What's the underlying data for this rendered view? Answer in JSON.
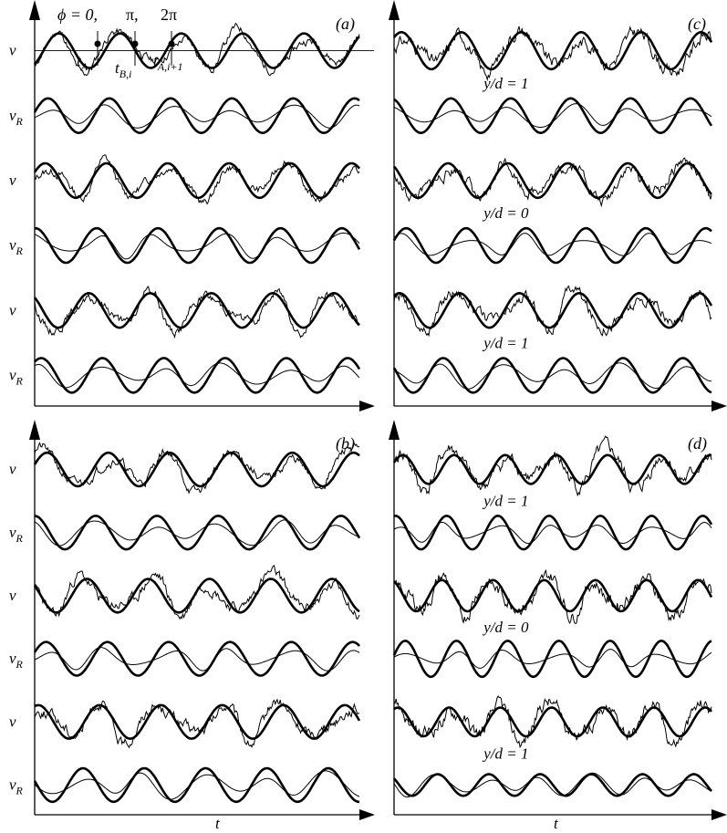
{
  "chart_data": {
    "type": "line",
    "time_axis_label": "t",
    "axis_label_v": "v",
    "axis_label_vR": "v",
    "axis_label_vR_sub": "R",
    "legend": "",
    "grid": false,
    "panels": [
      {
        "id": "a",
        "label": "(a)",
        "rows": [
          {
            "kind": "v",
            "note": "",
            "ref_freq": 5.3,
            "ref_amp": 0.7,
            "ref_phase": -0.9,
            "meas_amp": 0.95,
            "meas_noise": 0.25,
            "seed": 11
          },
          {
            "kind": "vR",
            "note": "",
            "ref_freq": 5.3,
            "ref_amp": 0.7,
            "ref_phase": 0.2,
            "meas_amp": 0.5,
            "meas_noise": 0.0,
            "seed": 12
          },
          {
            "kind": "v",
            "note": "",
            "ref_freq": 5.3,
            "ref_amp": 0.7,
            "ref_phase": 0.5,
            "meas_amp": 0.9,
            "meas_noise": 0.25,
            "seed": 13
          },
          {
            "kind": "vR",
            "note": "",
            "ref_freq": 5.3,
            "ref_amp": 0.7,
            "ref_phase": 1.5,
            "meas_amp": 0.55,
            "meas_noise": 0.0,
            "seed": 14
          },
          {
            "kind": "v",
            "note": "",
            "ref_freq": 5.3,
            "ref_amp": 0.7,
            "ref_phase": 2.3,
            "meas_amp": 0.9,
            "meas_noise": 0.28,
            "seed": 15
          },
          {
            "kind": "vR",
            "note": "",
            "ref_freq": 5.3,
            "ref_amp": 0.7,
            "ref_phase": 0.9,
            "meas_amp": 0.5,
            "meas_noise": 0.0,
            "seed": 16
          }
        ],
        "phase_annotation": {
          "phi0_text": "ϕ = 0,",
          "pi_text": "π,",
          "twopi_text": "2π",
          "tA_i": "t",
          "tA_i_sub": "A,i",
          "tB_i": "t",
          "tB_i_sub": "B,i",
          "tA_i1": "t",
          "tA_i1_sub": "A,i+1"
        }
      },
      {
        "id": "b",
        "label": "(b)",
        "rows": [
          {
            "kind": "v",
            "note": "",
            "ref_freq": 5.3,
            "ref_amp": 0.7,
            "ref_phase": 0.3,
            "meas_amp": 0.95,
            "meas_noise": 0.3,
            "seed": 21
          },
          {
            "kind": "vR",
            "note": "",
            "ref_freq": 5.3,
            "ref_amp": 0.7,
            "ref_phase": 1.6,
            "meas_amp": 0.55,
            "meas_noise": 0.0,
            "seed": 22
          },
          {
            "kind": "v",
            "note": "",
            "ref_freq": 5.3,
            "ref_amp": 0.7,
            "ref_phase": 2.5,
            "meas_amp": 0.95,
            "meas_noise": 0.35,
            "seed": 23
          },
          {
            "kind": "vR",
            "note": "",
            "ref_freq": 5.3,
            "ref_amp": 0.7,
            "ref_phase": 0.4,
            "meas_amp": 0.5,
            "meas_noise": 0.0,
            "seed": 24
          },
          {
            "kind": "v",
            "note": "",
            "ref_freq": 5.3,
            "ref_amp": 0.7,
            "ref_phase": 1.2,
            "meas_amp": 0.95,
            "meas_noise": 0.35,
            "seed": 25
          },
          {
            "kind": "vR",
            "note": "",
            "ref_freq": 5.3,
            "ref_amp": 0.7,
            "ref_phase": 2.9,
            "meas_amp": 0.6,
            "meas_noise": 0.0,
            "seed": 26
          }
        ]
      },
      {
        "id": "c",
        "label": "(c)",
        "rows": [
          {
            "kind": "v",
            "note": "",
            "ref_freq": 5.3,
            "ref_amp": 0.75,
            "ref_phase": 0.8,
            "meas_amp": 0.9,
            "meas_noise": 0.4,
            "seed": 31
          },
          {
            "kind": "vR",
            "note": "y/d = 1",
            "ref_freq": 5.3,
            "ref_amp": 0.7,
            "ref_phase": 1.9,
            "meas_amp": 0.5,
            "meas_noise": 0.0,
            "seed": 32
          },
          {
            "kind": "v",
            "note": "",
            "ref_freq": 5.3,
            "ref_amp": 0.7,
            "ref_phase": 2.2,
            "meas_amp": 0.9,
            "meas_noise": 0.35,
            "seed": 33
          },
          {
            "kind": "vR",
            "note": "y/d = 0",
            "ref_freq": 5.3,
            "ref_amp": 0.7,
            "ref_phase": 0.3,
            "meas_amp": 0.5,
            "meas_noise": 0.0,
            "seed": 34
          },
          {
            "kind": "v",
            "note": "",
            "ref_freq": 5.3,
            "ref_amp": 0.7,
            "ref_phase": 1.0,
            "meas_amp": 0.9,
            "meas_noise": 0.35,
            "seed": 35
          },
          {
            "kind": "vR",
            "note": "y/d = 1",
            "ref_freq": 5.3,
            "ref_amp": 0.7,
            "ref_phase": 2.7,
            "meas_amp": 0.55,
            "meas_noise": 0.0,
            "seed": 36
          }
        ]
      },
      {
        "id": "d",
        "label": "(d)",
        "rows": [
          {
            "kind": "v",
            "note": "",
            "ref_freq": 6.2,
            "ref_amp": 0.6,
            "ref_phase": 0.5,
            "meas_amp": 0.9,
            "meas_noise": 0.45,
            "seed": 41
          },
          {
            "kind": "vR",
            "note": "y/d = 1",
            "ref_freq": 6.2,
            "ref_amp": 0.7,
            "ref_phase": 1.4,
            "meas_amp": 0.45,
            "meas_noise": 0.0,
            "seed": 42
          },
          {
            "kind": "v",
            "note": "",
            "ref_freq": 6.2,
            "ref_amp": 0.65,
            "ref_phase": 2.0,
            "meas_amp": 0.9,
            "meas_noise": 0.45,
            "seed": 43
          },
          {
            "kind": "vR",
            "note": "y/d = 0",
            "ref_freq": 6.2,
            "ref_amp": 0.75,
            "ref_phase": 0.2,
            "meas_amp": 0.4,
            "meas_noise": 0.0,
            "seed": 44
          },
          {
            "kind": "v",
            "note": "",
            "ref_freq": 6.2,
            "ref_amp": 0.6,
            "ref_phase": 1.1,
            "meas_amp": 0.9,
            "meas_noise": 0.45,
            "seed": 45
          },
          {
            "kind": "vR",
            "note": "y/d = 1",
            "ref_freq": 6.2,
            "ref_amp": 0.45,
            "ref_phase": 2.5,
            "meas_amp": 0.5,
            "meas_noise": 0.0,
            "seed": 46
          }
        ]
      }
    ]
  }
}
